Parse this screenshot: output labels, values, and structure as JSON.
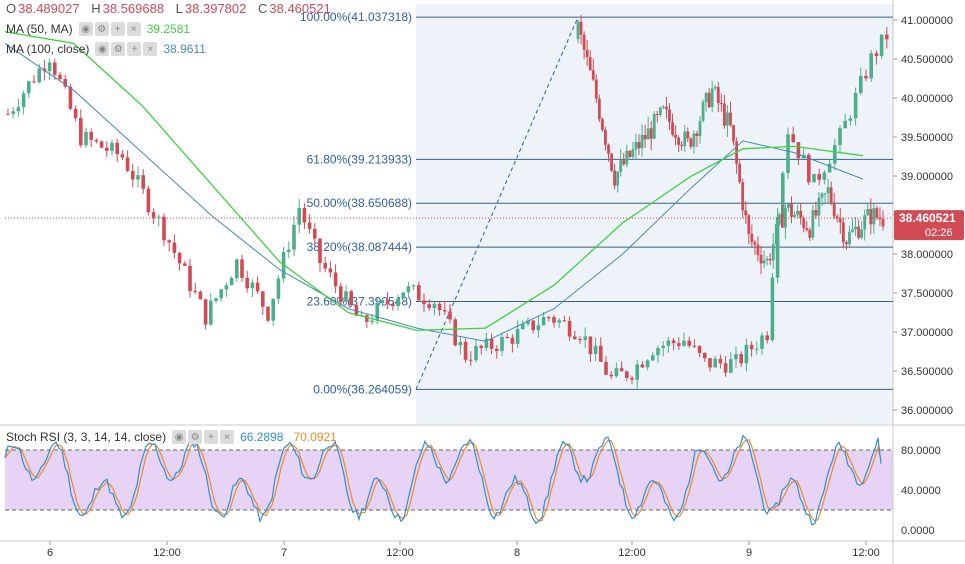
{
  "header": {
    "open_label": "O",
    "open": "38.489027",
    "high_label": "H",
    "high": "38.569688",
    "low_label": "L",
    "low": "38.397802",
    "close_label": "C",
    "close": "38.460521"
  },
  "indicators": {
    "ma50": {
      "label": "MA (50, MA)",
      "value": "39.2581",
      "color": "#3fd13f"
    },
    "ma100": {
      "label": "MA (100, close)",
      "value": "38.9611",
      "color": "#4a8ab5"
    },
    "stoch": {
      "label": "Stoch RSI (3, 3, 14, 14, close)",
      "k_value": "66.2898",
      "d_value": "70.0921",
      "k_color": "#2f8fd8",
      "d_color": "#f08a24"
    }
  },
  "icons": [
    "eye-icon",
    "gear-icon",
    "plus-icon",
    "close-icon"
  ],
  "price_badge": {
    "price": "38.460521",
    "timer": "02:26",
    "color": "#d14a54"
  },
  "fib_levels": [
    {
      "label": "100.00%",
      "price": "41.037318"
    },
    {
      "label": "61.80%",
      "price": "39.213933"
    },
    {
      "label": "50.00%",
      "price": "38.650688"
    },
    {
      "label": "38.20%",
      "price": "38.087444"
    },
    {
      "label": "23.60%",
      "price": "37.390548"
    },
    {
      "label": "0.00%",
      "price": "36.264059"
    }
  ],
  "colors": {
    "up": "#4daf8a",
    "down": "#d14a54",
    "fib_line": "#3a5f84",
    "fib_label": "#2f5fa8",
    "fib_zone": "#eef3fa",
    "stoch_band": "#e6d3f5"
  },
  "chart_data": [
    {
      "type": "candlestick",
      "x_ticks": [
        "6",
        "12:00",
        "7",
        "12:00",
        "8",
        "12:00",
        "9",
        "12:00"
      ],
      "y_ticks": [
        "41.000000",
        "40.500000",
        "40.000000",
        "39.500000",
        "39.000000",
        "38.500000",
        "38.000000",
        "37.500000",
        "37.000000",
        "36.500000",
        "36.000000"
      ],
      "ylim": [
        35.9,
        41.2
      ],
      "last_price": 38.460521,
      "n_bars": 170,
      "anchors": [
        [
          0,
          39.8
        ],
        [
          8,
          40.55
        ],
        [
          14,
          39.5
        ],
        [
          22,
          39.25
        ],
        [
          30,
          38.3
        ],
        [
          38,
          37.2
        ],
        [
          44,
          37.9
        ],
        [
          50,
          37.25
        ],
        [
          56,
          38.6
        ],
        [
          60,
          37.9
        ],
        [
          68,
          37.1
        ],
        [
          76,
          37.55
        ],
        [
          82,
          37.4
        ],
        [
          88,
          36.7
        ],
        [
          96,
          36.9
        ],
        [
          104,
          37.2
        ],
        [
          110,
          37.0
        ],
        [
          116,
          36.4
        ],
        [
          120,
          36.5
        ],
        [
          124,
          36.8
        ],
        [
          130,
          36.9
        ],
        [
          134,
          36.6
        ],
        [
          140,
          36.6
        ],
        [
          146,
          37.0
        ],
        [
          148,
          38.6
        ],
        [
          150,
          39.6
        ],
        [
          155,
          38.9
        ],
        [
          160,
          39.5
        ],
        [
          166,
          40.5
        ],
        [
          170,
          40.9
        ]
      ],
      "ma50": [
        [
          0,
          40.85
        ],
        [
          20,
          40.7
        ],
        [
          40,
          39.9
        ],
        [
          60,
          38.9
        ],
        [
          80,
          37.9
        ],
        [
          100,
          37.25
        ],
        [
          120,
          37.02
        ],
        [
          140,
          37.05
        ],
        [
          160,
          37.6
        ],
        [
          180,
          38.4
        ],
        [
          200,
          39.0
        ],
        [
          215,
          39.35
        ],
        [
          230,
          39.38
        ],
        [
          250,
          39.26
        ]
      ],
      "ma100": [
        [
          0,
          40.7
        ],
        [
          20,
          40.1
        ],
        [
          40,
          39.3
        ],
        [
          60,
          38.5
        ],
        [
          80,
          37.8
        ],
        [
          100,
          37.3
        ],
        [
          120,
          37.05
        ],
        [
          140,
          36.88
        ],
        [
          160,
          37.3
        ],
        [
          180,
          38.0
        ],
        [
          200,
          38.85
        ],
        [
          215,
          39.45
        ],
        [
          230,
          39.3
        ],
        [
          250,
          38.96
        ]
      ]
    },
    {
      "type": "line",
      "title": "Stoch RSI (3, 3, 14, 14, close)",
      "y_ticks": [
        "80.0000",
        "40.0000",
        "0.0000"
      ],
      "ylim": [
        -5,
        100
      ],
      "bands": [
        20,
        80
      ],
      "series": [
        {
          "name": "K",
          "last": 66.2898
        },
        {
          "name": "D",
          "last": 70.0921
        }
      ]
    }
  ]
}
